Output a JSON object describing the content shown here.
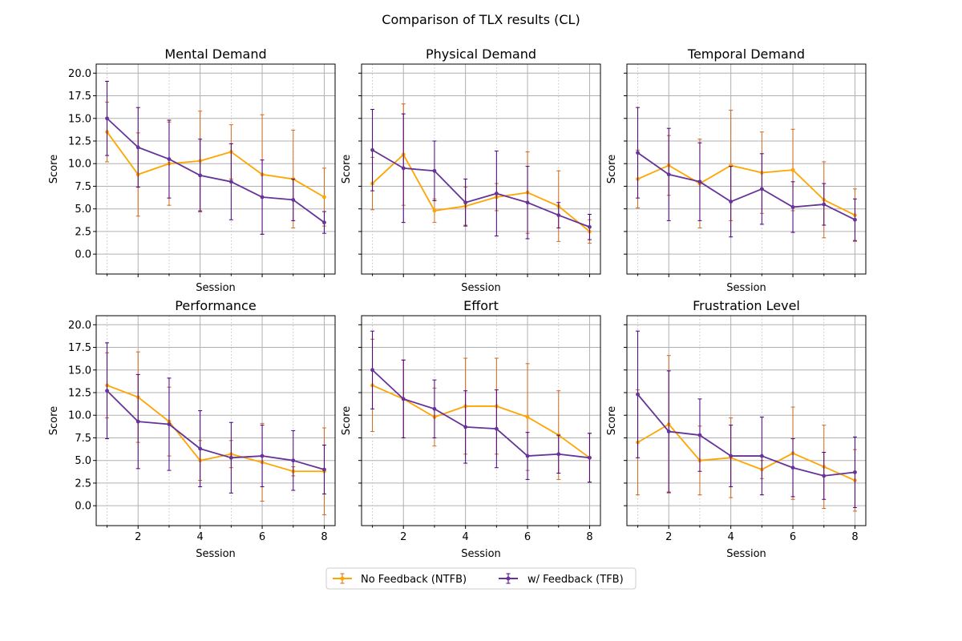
{
  "figure": {
    "title": "Comparison of TLX results (CL)"
  },
  "colors": {
    "ntfb": "#ffa500",
    "ntfb_err": "#d2691e",
    "tfb": "#663399",
    "tfb_err": "#4b0082",
    "grid": "#b0b0b0"
  },
  "legend": {
    "ntfb_label": "No Feedback (NTFB)",
    "tfb_label": "w/ Feedback (TFB)"
  },
  "chart_data": {
    "type": "line",
    "layout": "2x3 subplots with shared y axis; legend at bottom center",
    "x": [
      1,
      2,
      3,
      4,
      5,
      6,
      7,
      8
    ],
    "xlabel": "Session",
    "ylabel": "Score",
    "ylim": [
      -2.2,
      21.0
    ],
    "yticks": [
      0.0,
      2.5,
      5.0,
      7.5,
      10.0,
      12.5,
      15.0,
      17.5,
      20.0
    ],
    "ytick_labels": [
      "0.0",
      "2.5",
      "5.0",
      "7.5",
      "10.0",
      "12.5",
      "15.0",
      "17.5",
      "20.0"
    ],
    "xticks_labeled": [
      "2",
      "4",
      "6",
      "8"
    ],
    "grid": true,
    "panels": [
      {
        "title": "Mental Demand",
        "series": [
          {
            "name": "No Feedback (NTFB)",
            "values": [
              13.5,
              8.8,
              10.0,
              10.3,
              11.3,
              8.8,
              8.3,
              6.3
            ],
            "err": [
              3.3,
              4.6,
              4.6,
              5.5,
              3.0,
              6.6,
              5.4,
              3.2
            ]
          },
          {
            "name": "w/ Feedback (TFB)",
            "values": [
              15.0,
              11.8,
              10.5,
              8.7,
              8.0,
              6.3,
              6.0,
              3.5
            ],
            "err": [
              4.1,
              4.4,
              4.3,
              4.0,
              4.2,
              4.1,
              2.3,
              1.2
            ]
          }
        ]
      },
      {
        "title": "Physical Demand",
        "series": [
          {
            "name": "No Feedback (NTFB)",
            "values": [
              7.8,
              11.0,
              4.8,
              5.3,
              6.3,
              6.8,
              5.3,
              2.5
            ],
            "err": [
              2.9,
              5.6,
              1.3,
              2.1,
              1.5,
              4.5,
              3.9,
              1.3
            ]
          },
          {
            "name": "w/ Feedback (TFB)",
            "values": [
              11.5,
              9.5,
              9.2,
              5.7,
              6.7,
              5.7,
              4.3,
              3.0
            ],
            "err": [
              4.5,
              6.0,
              3.3,
              2.6,
              4.7,
              4.0,
              1.4,
              1.4
            ]
          }
        ]
      },
      {
        "title": "Temporal Demand",
        "series": [
          {
            "name": "No Feedback (NTFB)",
            "values": [
              8.3,
              9.8,
              7.8,
              9.8,
              9.0,
              9.3,
              6.0,
              4.3
            ],
            "err": [
              3.2,
              3.3,
              4.9,
              6.1,
              4.5,
              4.5,
              4.2,
              2.9
            ]
          },
          {
            "name": "w/ Feedback (TFB)",
            "values": [
              11.2,
              8.8,
              8.0,
              5.8,
              7.2,
              5.2,
              5.5,
              3.8
            ],
            "err": [
              5.0,
              5.1,
              4.3,
              3.9,
              3.9,
              2.8,
              2.3,
              2.3
            ]
          }
        ]
      },
      {
        "title": "Performance",
        "series": [
          {
            "name": "No Feedback (NTFB)",
            "values": [
              13.3,
              12.0,
              9.3,
              5.0,
              5.7,
              4.8,
              3.8,
              3.8
            ],
            "err": [
              3.6,
              5.0,
              3.8,
              2.2,
              1.5,
              4.3,
              0.5,
              4.8
            ]
          },
          {
            "name": "w/ Feedback (TFB)",
            "values": [
              12.7,
              9.3,
              9.0,
              6.3,
              5.3,
              5.5,
              5.0,
              4.0
            ],
            "err": [
              5.3,
              5.2,
              5.1,
              4.2,
              3.9,
              3.4,
              3.3,
              2.7
            ]
          }
        ]
      },
      {
        "title": "Effort",
        "series": [
          {
            "name": "No Feedback (NTFB)",
            "values": [
              13.3,
              11.8,
              9.8,
              11.0,
              11.0,
              9.8,
              7.8,
              5.3
            ],
            "err": [
              5.1,
              4.3,
              3.2,
              5.3,
              5.3,
              5.9,
              4.9,
              2.7
            ]
          },
          {
            "name": "w/ Feedback (TFB)",
            "values": [
              15.0,
              11.8,
              10.7,
              8.7,
              8.5,
              5.5,
              5.7,
              5.3
            ],
            "err": [
              4.3,
              4.3,
              3.2,
              4.0,
              4.3,
              2.6,
              2.1,
              2.7
            ]
          }
        ]
      },
      {
        "title": "Frustration Level",
        "series": [
          {
            "name": "No Feedback (NTFB)",
            "values": [
              7.0,
              9.0,
              5.0,
              5.3,
              4.0,
              5.8,
              4.3,
              2.8
            ],
            "err": [
              5.8,
              7.6,
              3.8,
              4.4,
              1.0,
              5.1,
              4.6,
              3.4
            ]
          },
          {
            "name": "w/ Feedback (TFB)",
            "values": [
              12.3,
              8.2,
              7.8,
              5.5,
              5.5,
              4.2,
              3.3,
              3.7
            ],
            "err": [
              7.0,
              6.7,
              4.0,
              3.4,
              4.3,
              3.2,
              2.6,
              3.9
            ]
          }
        ]
      }
    ]
  }
}
